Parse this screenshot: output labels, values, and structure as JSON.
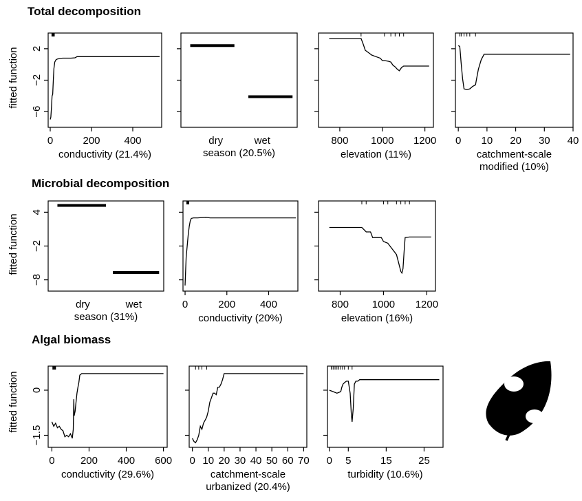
{
  "sections": [
    {
      "title": "Total decomposition"
    },
    {
      "title": "Microbial decomposition"
    },
    {
      "title": "Algal biomass"
    }
  ],
  "ylabel": "fitted function",
  "icon": "leaf-icon",
  "chart_data": [
    {
      "id": "td-conductivity",
      "type": "line",
      "section": 0,
      "xlabel": [
        "conductivity (21.4%)"
      ],
      "xlim": [
        -10,
        540
      ],
      "ylim": [
        -8,
        4
      ],
      "xticks": [
        0,
        200,
        400
      ],
      "yticks": [
        -6,
        -2,
        2
      ],
      "ylabels": true,
      "x": [
        0,
        3,
        6,
        9,
        12,
        15,
        18,
        22,
        28,
        35,
        45,
        60,
        80,
        100,
        120,
        130,
        150,
        200,
        300,
        400,
        530
      ],
      "y": [
        -7,
        -6.7,
        -5.5,
        -4,
        -3.8,
        -2,
        -0.5,
        0.3,
        0.6,
        0.7,
        0.75,
        0.8,
        0.8,
        0.8,
        0.85,
        1,
        1,
        1,
        1,
        1,
        1
      ],
      "rug": [
        8,
        10,
        12,
        14,
        16,
        18,
        20
      ]
    },
    {
      "id": "td-season",
      "type": "step",
      "section": 0,
      "xlabel": [
        "season (20.5%)"
      ],
      "xlim": [
        0,
        1
      ],
      "ylim": [
        -8,
        4
      ],
      "yticks": [
        -6,
        -2,
        2
      ],
      "ylabels": false,
      "categories": [
        "dry",
        "wet"
      ],
      "cat_x": [
        0.3,
        0.7
      ],
      "values": [
        2.4,
        -4.1
      ],
      "segments": [
        [
          0.08,
          0.46
        ],
        [
          0.58,
          0.96
        ]
      ]
    },
    {
      "id": "td-elevation",
      "type": "line",
      "section": 0,
      "xlabel": [
        "elevation (11%)"
      ],
      "xlim": [
        700,
        1240
      ],
      "ylim": [
        -8,
        4
      ],
      "xticks": [
        800,
        1000,
        1200
      ],
      "yticks": [
        -6,
        -2,
        2
      ],
      "ylabels": false,
      "x": [
        750,
        900,
        910,
        920,
        935,
        950,
        970,
        990,
        1000,
        1010,
        1030,
        1040,
        1050,
        1060,
        1070,
        1080,
        1090,
        1100,
        1120,
        1220
      ],
      "y": [
        3.3,
        3.3,
        2.6,
        1.8,
        1.5,
        1.2,
        1,
        0.8,
        0.5,
        0.5,
        0.4,
        0.3,
        -0.1,
        -0.3,
        -0.6,
        -0.8,
        -0.4,
        -0.2,
        -0.2,
        -0.2
      ],
      "rug": [
        900,
        1010,
        1040,
        1060,
        1080,
        1100
      ]
    },
    {
      "id": "td-catchment-modified",
      "type": "line",
      "section": 0,
      "xlabel": [
        "catchment-scale",
        "modified (10%)"
      ],
      "xlim": [
        -1,
        40
      ],
      "ylim": [
        -8,
        4
      ],
      "xticks": [
        0,
        10,
        20,
        30,
        40
      ],
      "yticks": [
        -6,
        -2,
        2
      ],
      "ylabels": false,
      "x": [
        0,
        0.5,
        0.7,
        1,
        1.5,
        2,
        3,
        4,
        5,
        6,
        6.3,
        7,
        8,
        9,
        39
      ],
      "y": [
        2.4,
        2.3,
        1.5,
        0.2,
        -1.8,
        -3.1,
        -3.2,
        -3.1,
        -2.8,
        -2.6,
        -2,
        -0.6,
        0.6,
        1.3,
        1.3
      ],
      "rug": [
        0.5,
        1,
        2,
        3,
        4,
        6
      ]
    },
    {
      "id": "md-season",
      "type": "step",
      "section": 1,
      "xlabel": [
        "season (31%)"
      ],
      "xlim": [
        0,
        1
      ],
      "ylim": [
        -10,
        6
      ],
      "yticks": [
        -8,
        -2,
        4
      ],
      "ylabels": true,
      "categories": [
        "dry",
        "wet"
      ],
      "cat_x": [
        0.3,
        0.74
      ],
      "values": [
        5.2,
        -6.7
      ],
      "segments": [
        [
          0.08,
          0.5
        ],
        [
          0.56,
          0.96
        ]
      ]
    },
    {
      "id": "md-conductivity",
      "type": "line",
      "section": 1,
      "xlabel": [
        "conductivity (20%)"
      ],
      "xlim": [
        -10,
        540
      ],
      "ylim": [
        -10,
        6
      ],
      "xticks": [
        0,
        200,
        400
      ],
      "yticks": [
        -8,
        -2,
        4
      ],
      "ylabels": false,
      "x": [
        0,
        5,
        10,
        15,
        20,
        25,
        30,
        40,
        60,
        100,
        120,
        200,
        300,
        400,
        530
      ],
      "y": [
        -9,
        -4,
        -2,
        0,
        1.5,
        2.5,
        2.9,
        3,
        3,
        3.1,
        3,
        3,
        3,
        3,
        3
      ],
      "rug": [
        8,
        10,
        12,
        14,
        16,
        18
      ]
    },
    {
      "id": "md-elevation",
      "type": "line",
      "section": 1,
      "xlabel": [
        "elevation (16%)"
      ],
      "xlim": [
        700,
        1240
      ],
      "ylim": [
        -10,
        6
      ],
      "xticks": [
        800,
        1000,
        1200
      ],
      "yticks": [
        -8,
        -2,
        4
      ],
      "ylabels": false,
      "x": [
        750,
        900,
        920,
        940,
        950,
        990,
        1000,
        1020,
        1040,
        1060,
        1070,
        1080,
        1085,
        1090,
        1095,
        1100,
        1120,
        1220
      ],
      "y": [
        1.3,
        1.3,
        0.5,
        0.5,
        -0.5,
        -0.5,
        -1.2,
        -1.5,
        -2.5,
        -3.5,
        -5,
        -6.5,
        -6.8,
        -6,
        -3,
        -0.5,
        -0.4,
        -0.4
      ],
      "rug": [
        900,
        920,
        1000,
        1020,
        1060,
        1080,
        1100,
        1120
      ]
    },
    {
      "id": "ab-conductivity",
      "type": "line",
      "section": 2,
      "xlabel": [
        "conductivity (29.6%)"
      ],
      "xlim": [
        -20,
        620
      ],
      "ylim": [
        -1.9,
        0.8
      ],
      "xticks": [
        0,
        200,
        400,
        600
      ],
      "yticks": [
        -1.5,
        0
      ],
      "ylabels": true,
      "x": [
        0,
        10,
        20,
        30,
        40,
        50,
        60,
        70,
        80,
        90,
        100,
        110,
        115,
        118,
        120,
        125,
        130,
        135,
        140,
        145,
        150,
        160,
        600
      ],
      "y": [
        -1.05,
        -1.2,
        -1.1,
        -1.25,
        -1.2,
        -1.3,
        -1.35,
        -1.55,
        -1.5,
        -1.55,
        -1.45,
        -1.6,
        -1.3,
        -0.3,
        -0.85,
        -0.7,
        -0.4,
        -0.1,
        0.1,
        0.25,
        0.5,
        0.55,
        0.55
      ],
      "rug": [
        5,
        8,
        12,
        15,
        18,
        20
      ]
    },
    {
      "id": "ab-catchment-urbanized",
      "type": "line",
      "section": 2,
      "xlabel": [
        "catchment-scale",
        "urbanized (20.4%)"
      ],
      "xlim": [
        -2,
        72
      ],
      "ylim": [
        -1.9,
        0.8
      ],
      "xticks": [
        0,
        10,
        20,
        30,
        40,
        50,
        60,
        70
      ],
      "yticks": [
        -1.5,
        0
      ],
      "ylabels": false,
      "x": [
        0,
        1,
        2,
        3,
        4,
        5,
        6,
        7,
        8,
        9,
        10,
        11,
        12,
        13,
        14,
        15,
        16,
        17,
        18,
        19,
        20,
        70
      ],
      "y": [
        -1.6,
        -1.7,
        -1.75,
        -1.65,
        -1.5,
        -1.2,
        -1.3,
        -1.1,
        -1,
        -0.9,
        -0.7,
        -0.4,
        -0.25,
        -0.1,
        -0.1,
        -0.15,
        0.1,
        0.1,
        0.2,
        0.35,
        0.55,
        0.55
      ],
      "rug": [
        2,
        4,
        6,
        9
      ]
    },
    {
      "id": "ab-turbidity",
      "type": "line",
      "section": 2,
      "xlabel": [
        "turbidity (10.6%)"
      ],
      "xlim": [
        -0.5,
        30
      ],
      "ylim": [
        -1.9,
        0.8
      ],
      "xticks": [
        0,
        5,
        15,
        25
      ],
      "yticks": [
        -1.5,
        0
      ],
      "ylabels": false,
      "x": [
        0,
        1,
        2,
        3,
        3.3,
        3.6,
        4,
        4.5,
        5,
        5.5,
        5.8,
        6,
        6.3,
        6.6,
        7,
        7.5,
        8,
        29
      ],
      "y": [
        0,
        -0.05,
        -0.1,
        -0.05,
        0.1,
        0.2,
        0.25,
        0.3,
        0.3,
        -0.1,
        -0.8,
        -1.05,
        -0.6,
        0.2,
        0.3,
        0.3,
        0.35,
        0.35
      ],
      "rug": [
        0.5,
        1,
        1.5,
        2,
        2.5,
        3,
        3.5,
        4,
        5,
        6
      ]
    }
  ]
}
